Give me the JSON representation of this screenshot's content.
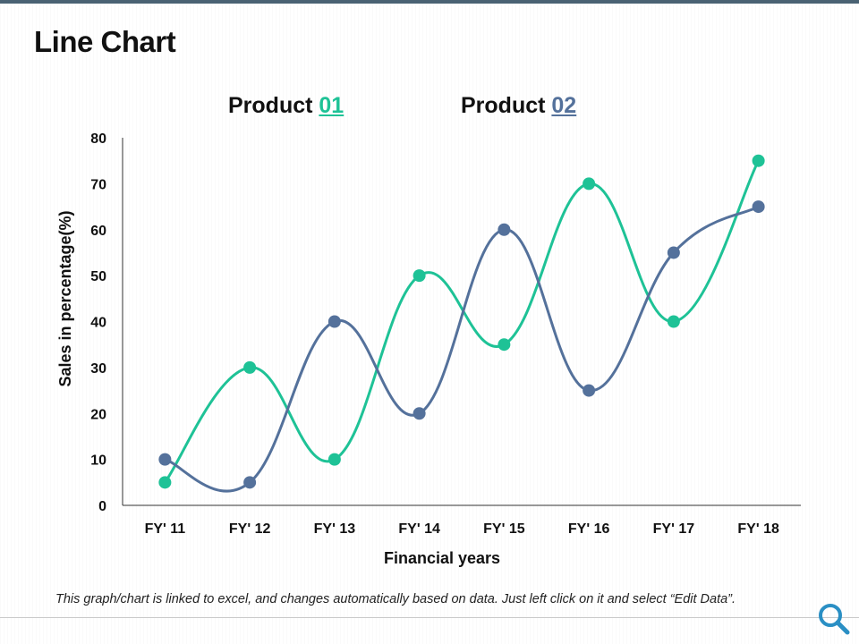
{
  "page": {
    "title": "Line Chart",
    "footer_note": "This graph/chart is linked to excel, and changes automatically based on data.  Just left click on it and select “Edit Data”.",
    "icon": "search-icon"
  },
  "colors": {
    "product01": "#1ec296",
    "product02": "#54719b",
    "axis": "#333333",
    "topbar": "#4a6273"
  },
  "legend": [
    {
      "prefix": "Product ",
      "number": "01",
      "color": "#1ec296"
    },
    {
      "prefix": "Product ",
      "number": "02",
      "color": "#54719b"
    }
  ],
  "chart_data": {
    "type": "line",
    "smooth": true,
    "categories": [
      "FY' 11",
      "FY' 12",
      "FY' 13",
      "FY' 14",
      "FY' 15",
      "FY' 16",
      "FY' 17",
      "FY' 18"
    ],
    "series": [
      {
        "name": "Product 01",
        "color": "#1ec296",
        "values": [
          5,
          30,
          10,
          50,
          35,
          70,
          40,
          75
        ]
      },
      {
        "name": "Product 02",
        "color": "#54719b",
        "values": [
          10,
          5,
          40,
          20,
          60,
          25,
          55,
          65
        ]
      }
    ],
    "xlabel": "Financial years",
    "ylabel": "Sales in percentage(%)",
    "ylim": [
      0,
      80
    ],
    "yticks": [
      0,
      10,
      20,
      30,
      40,
      50,
      60,
      70,
      80
    ],
    "grid": false,
    "legend_position": "top"
  }
}
